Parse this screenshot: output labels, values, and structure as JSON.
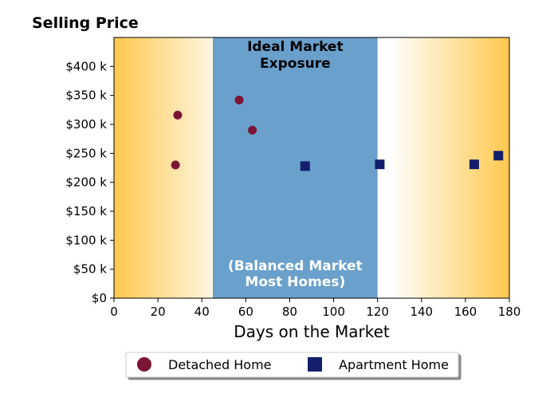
{
  "chart_data": {
    "type": "scatter",
    "title": "Selling Price",
    "xlabel": "Days on the Market",
    "ylabel": "",
    "xlim": [
      0,
      180
    ],
    "ylim": [
      0,
      450000
    ],
    "xticks": [
      0,
      20,
      40,
      60,
      80,
      100,
      120,
      140,
      160,
      180
    ],
    "yticks": [
      0,
      50000,
      100000,
      150000,
      200000,
      250000,
      300000,
      350000,
      400000
    ],
    "xtick_labels": [
      "0",
      "20",
      "40",
      "60",
      "80",
      "100",
      "120",
      "140",
      "160",
      "180"
    ],
    "ytick_labels": [
      "$0",
      "$50 k",
      "$100 k",
      "$150 k",
      "$200 k",
      "$250 k",
      "$300 k",
      "$350 k",
      "$400 k"
    ],
    "band": {
      "x_range": [
        45,
        120
      ],
      "color": "#6aa0cc",
      "top_label": [
        "Ideal Market",
        "Exposure"
      ],
      "bottom_label": [
        "(Balanced Market",
        "Most Homes)"
      ]
    },
    "background_gradient": {
      "edge_color": "#ffc84d",
      "center_color": "#ffffff"
    },
    "series": [
      {
        "name": "Detached Home",
        "marker": "circle",
        "color": "#7b1535",
        "points": [
          {
            "x": 28,
            "y": 230000
          },
          {
            "x": 29,
            "y": 316000
          },
          {
            "x": 57,
            "y": 342000
          },
          {
            "x": 63,
            "y": 290000
          }
        ]
      },
      {
        "name": "Apartment Home",
        "marker": "square",
        "color": "#141f6b",
        "points": [
          {
            "x": 87,
            "y": 228000
          },
          {
            "x": 121,
            "y": 231000
          },
          {
            "x": 164,
            "y": 231000
          },
          {
            "x": 175,
            "y": 246000
          }
        ]
      }
    ],
    "legend_position": "bottom-center",
    "grid": false
  }
}
